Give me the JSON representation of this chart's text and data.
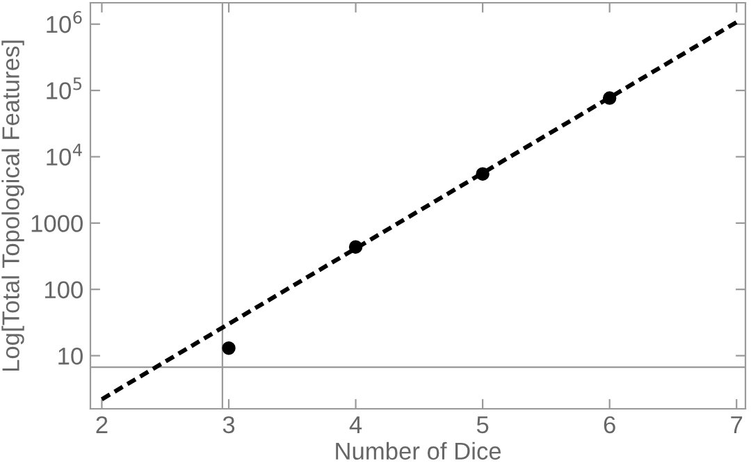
{
  "chart_data": {
    "type": "scatter",
    "xlabel": "Number of Dice",
    "ylabel": "Log[Total Topological Features]",
    "log": "y",
    "xlim": [
      1.91,
      7.07
    ],
    "ylim": [
      1.58,
      2100000
    ],
    "xticks": [
      2,
      3,
      4,
      5,
      6,
      7
    ],
    "yticks": [
      10,
      100,
      1000,
      {
        "value": 10000,
        "label": "10$^{4}$"
      },
      {
        "value": 100000,
        "label": "10$^{5}$"
      },
      {
        "value": 1000000,
        "label": "10$^{6}$"
      }
    ],
    "grid": false,
    "marker": "circle",
    "series": [
      {
        "color": "#000000",
        "x": [
          3,
          4,
          5,
          6
        ],
        "values": [
          13,
          436,
          5500,
          76700
        ]
      },
      {
        "type": "line",
        "color": "#000000",
        "line_style": "dashed",
        "marker": "none",
        "x": [
          2,
          7
        ],
        "values": [
          2.2,
          1070000
        ]
      }
    ],
    "ref_lines": [
      {
        "axis": "x",
        "value": 2.95,
        "color": "#999999"
      },
      {
        "axis": "y",
        "value": 6.7,
        "color": "#999999"
      }
    ]
  }
}
